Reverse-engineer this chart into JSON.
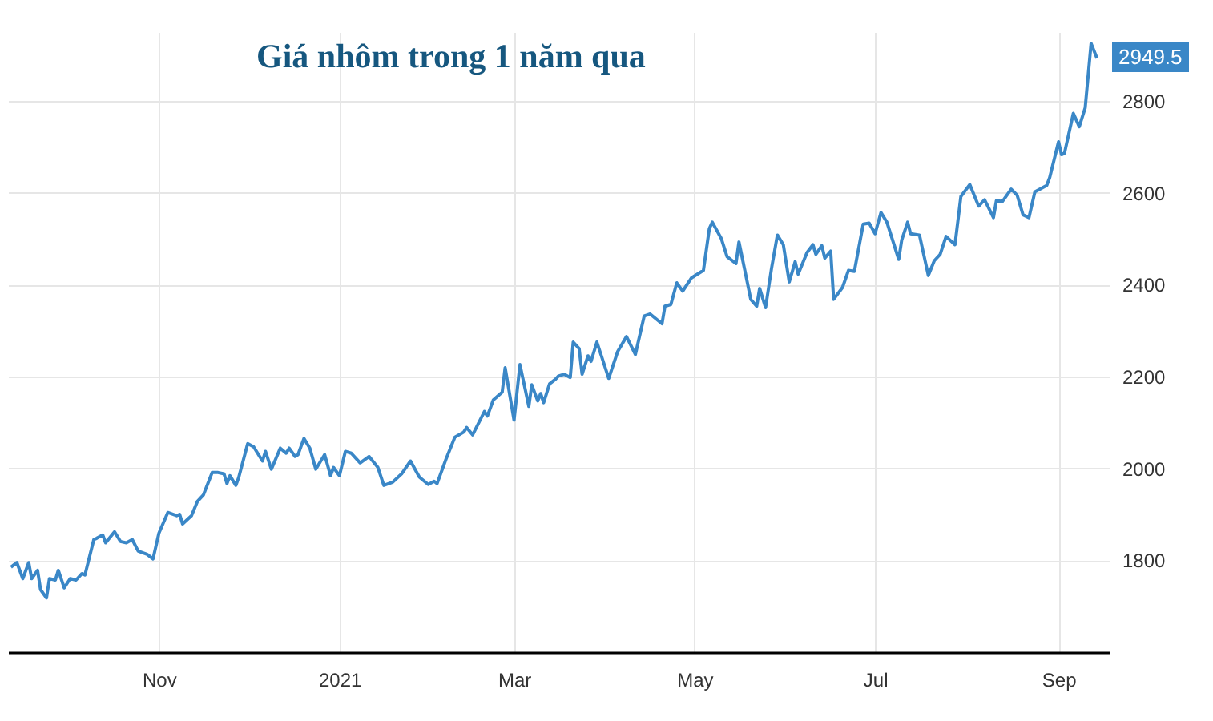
{
  "chart_data": {
    "type": "line",
    "title": "Giá nhôm trong 1 năm qua",
    "annotations": [
      "2949.5"
    ],
    "x": [
      "2020-09-12",
      "2020-09-14",
      "2020-09-16",
      "2020-09-18",
      "2020-09-19",
      "2020-09-21",
      "2020-09-22",
      "2020-09-24",
      "2020-09-25",
      "2020-09-27",
      "2020-09-28",
      "2020-09-30",
      "2020-10-02",
      "2020-10-04",
      "2020-10-06",
      "2020-10-07",
      "2020-10-10",
      "2020-10-11",
      "2020-10-13",
      "2020-10-14",
      "2020-10-17",
      "2020-10-19",
      "2020-10-21",
      "2020-10-23",
      "2020-10-25",
      "2020-10-28",
      "2020-10-30",
      "2020-11-01",
      "2020-11-04",
      "2020-11-07",
      "2020-11-08",
      "2020-11-09",
      "2020-11-12",
      "2020-11-14",
      "2020-11-16",
      "2020-11-19",
      "2020-11-21",
      "2020-11-23",
      "2020-11-24",
      "2020-11-25",
      "2020-11-27",
      "2020-11-28",
      "2020-12-01",
      "2020-12-03",
      "2020-12-06",
      "2020-12-07",
      "2020-12-09",
      "2020-12-12",
      "2020-12-14",
      "2020-12-15",
      "2020-12-17",
      "2020-12-18",
      "2020-12-20",
      "2020-12-22",
      "2020-12-24",
      "2020-12-27",
      "2020-12-29",
      "2020-12-30",
      "2021-01-01",
      "2021-01-03",
      "2021-01-05",
      "2021-01-08",
      "2021-01-11",
      "2021-01-14",
      "2021-01-16",
      "2021-01-19",
      "2021-01-22",
      "2021-01-25",
      "2021-01-28",
      "2021-01-31",
      "2021-02-02",
      "2021-02-03",
      "2021-02-06",
      "2021-02-09",
      "2021-02-12",
      "2021-02-13",
      "2021-02-15",
      "2021-02-19",
      "2021-02-20",
      "2021-02-22",
      "2021-02-25",
      "2021-02-26",
      "2021-03-01",
      "2021-03-03",
      "2021-03-06",
      "2021-03-07",
      "2021-03-09",
      "2021-03-10",
      "2021-03-11",
      "2021-03-13",
      "2021-03-15",
      "2021-03-16",
      "2021-03-18",
      "2021-03-20",
      "2021-03-21",
      "2021-03-23",
      "2021-03-24",
      "2021-03-26",
      "2021-03-27",
      "2021-03-29",
      "2021-04-02",
      "2021-04-05",
      "2021-04-08",
      "2021-04-11",
      "2021-04-14",
      "2021-04-16",
      "2021-04-20",
      "2021-04-21",
      "2021-04-23",
      "2021-04-25",
      "2021-04-27",
      "2021-04-30",
      "2021-05-04",
      "2021-05-06",
      "2021-05-07",
      "2021-05-10",
      "2021-05-12",
      "2021-05-15",
      "2021-05-16",
      "2021-05-18",
      "2021-05-20",
      "2021-05-22",
      "2021-05-23",
      "2021-05-25",
      "2021-05-27",
      "2021-05-29",
      "2021-05-31",
      "2021-06-02",
      "2021-06-04",
      "2021-06-05",
      "2021-06-08",
      "2021-06-10",
      "2021-06-11",
      "2021-06-13",
      "2021-06-14",
      "2021-06-16",
      "2021-06-17",
      "2021-06-20",
      "2021-06-22",
      "2021-06-24",
      "2021-06-27",
      "2021-06-29",
      "2021-07-01",
      "2021-07-03",
      "2021-07-05",
      "2021-07-09",
      "2021-07-10",
      "2021-07-12",
      "2021-07-13",
      "2021-07-16",
      "2021-07-19",
      "2021-07-21",
      "2021-07-23",
      "2021-07-25",
      "2021-07-28",
      "2021-07-30",
      "2021-08-02",
      "2021-08-05",
      "2021-08-07",
      "2021-08-10",
      "2021-08-11",
      "2021-08-13",
      "2021-08-16",
      "2021-08-18",
      "2021-08-20",
      "2021-08-22",
      "2021-08-24",
      "2021-08-28",
      "2021-08-29",
      "2021-09-01",
      "2021-09-02",
      "2021-09-03",
      "2021-09-06",
      "2021-09-08",
      "2021-09-10",
      "2021-09-12",
      "2021-09-14"
    ],
    "series": [
      {
        "color": "#3a87c7",
        "values": [
          1785,
          1795,
          1760,
          1795,
          1760,
          1778,
          1736,
          1718,
          1760,
          1757,
          1778,
          1740,
          1760,
          1757,
          1771,
          1768,
          1845,
          1848,
          1855,
          1838,
          1862,
          1841,
          1838,
          1845,
          1820,
          1813,
          1803,
          1859,
          1904,
          1897,
          1900,
          1879,
          1897,
          1928,
          1942,
          1991,
          1991,
          1988,
          1967,
          1984,
          1963,
          1981,
          2054,
          2047,
          2016,
          2037,
          1998,
          2044,
          2033,
          2044,
          2026,
          2030,
          2065,
          2044,
          1998,
          2030,
          1984,
          2002,
          1984,
          2037,
          2033,
          2012,
          2026,
          2002,
          1963,
          1970,
          1988,
          2016,
          1981,
          1965,
          1972,
          1967,
          2020,
          2068,
          2079,
          2089,
          2073,
          2124,
          2114,
          2149,
          2166,
          2219,
          2105,
          2226,
          2135,
          2182,
          2147,
          2163,
          2143,
          2184,
          2194,
          2201,
          2205,
          2198,
          2275,
          2261,
          2205,
          2245,
          2233,
          2275,
          2196,
          2254,
          2287,
          2248,
          2332,
          2336,
          2315,
          2353,
          2357,
          2404,
          2386,
          2415,
          2431,
          2522,
          2536,
          2501,
          2461,
          2446,
          2493,
          2431,
          2368,
          2353,
          2392,
          2350,
          2435,
          2508,
          2487,
          2406,
          2450,
          2423,
          2470,
          2487,
          2466,
          2485,
          2458,
          2473,
          2368,
          2394,
          2431,
          2429,
          2532,
          2534,
          2511,
          2557,
          2536,
          2455,
          2497,
          2536,
          2511,
          2508,
          2420,
          2452,
          2466,
          2505,
          2487,
          2592,
          2618,
          2571,
          2585,
          2546,
          2583,
          2581,
          2608,
          2595,
          2552,
          2546,
          2602,
          2616,
          2633,
          2711,
          2683,
          2686,
          2773,
          2744,
          2785,
          2925,
          2893
        ]
      }
    ],
    "xlim": [
      "2020-09-11",
      "2021-09-18"
    ],
    "xticks": [
      {
        "value": "2020-11-01",
        "label": "Nov"
      },
      {
        "value": "2021-01-01",
        "label": "2021"
      },
      {
        "value": "2021-03-01",
        "label": "Mar"
      },
      {
        "value": "2021-05-01",
        "label": "May"
      },
      {
        "value": "2021-07-01",
        "label": "Jul"
      },
      {
        "value": "2021-09-01",
        "label": "Sep"
      }
    ],
    "ylim": [
      1600,
      2950
    ],
    "yticks": [
      1800,
      2000,
      2200,
      2400,
      2600,
      2800
    ],
    "grid": true,
    "marker": "none",
    "line_style": "solid"
  }
}
